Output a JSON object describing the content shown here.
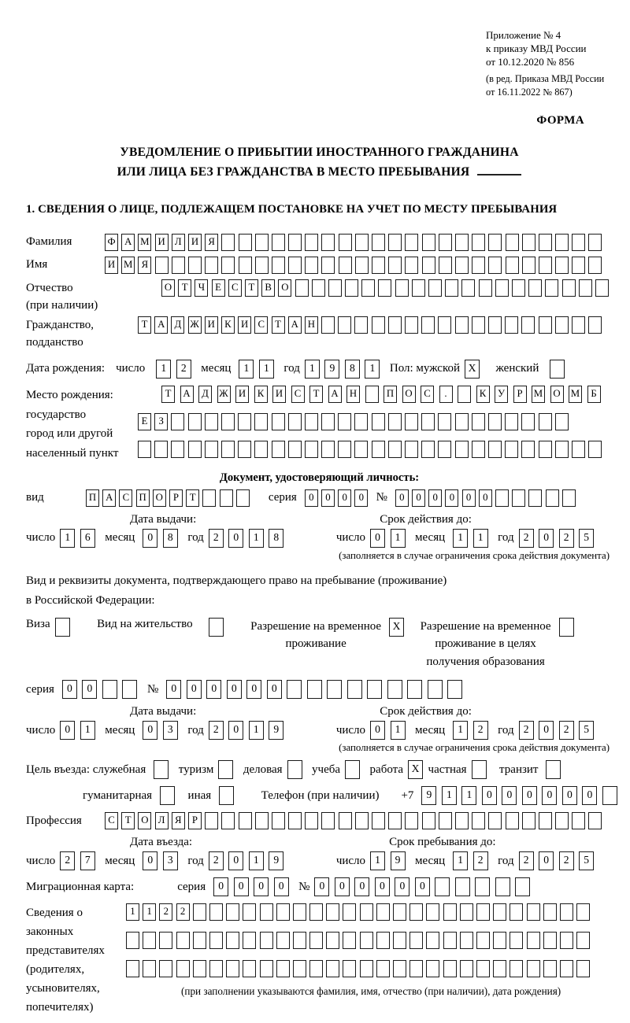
{
  "header": {
    "lines": [
      "Приложение № 4",
      "к приказу МВД России",
      "от 10.12.2020 № 856",
      "(в ред. Приказа МВД России",
      "от 16.11.2022 № 867)"
    ],
    "forma": "ФОРМА"
  },
  "title": {
    "line1": "УВЕДОМЛЕНИЕ О ПРИБЫТИИ ИНОСТРАННОГО ГРАЖДАНИНА",
    "line2": "ИЛИ ЛИЦА БЕЗ ГРАЖДАНСТВА В МЕСТО ПРЕБЫВАНИЯ"
  },
  "section1": {
    "heading": "1. СВЕДЕНИЯ О ЛИЦЕ, ПОДЛЕЖАЩЕМ ПОСТАНОВКЕ НА УЧЕТ ПО МЕСТУ ПРЕБЫВАНИЯ"
  },
  "labels": {
    "family": "Фамилия",
    "name": "Имя",
    "patronymic": "Отчество",
    "patronymic_note": "(при наличии)",
    "citizenship1": "Гражданство,",
    "citizenship2": "подданство",
    "birthdate": "Дата рождения:",
    "day": "число",
    "month": "месяц",
    "year": "год",
    "sex_male": "Пол: мужской",
    "sex_female": "женский",
    "birthplace": "Место рождения:",
    "bp_state": "государство",
    "bp_city1": "город или другой",
    "bp_city2": "населенный пункт",
    "id_doc_header": "Документ, удостоверяющий личность:",
    "vid": "вид",
    "series": "серия",
    "number": "№",
    "issue_date": "Дата выдачи:",
    "valid_until": "Срок действия до:",
    "limit_note": "(заполняется в случае ограничения срока действия документа)",
    "right_doc1": "Вид и реквизиты документа, подтверждающего право на пребывание (проживание)",
    "right_doc2": "в Российской Федерации:",
    "visa": "Виза",
    "residence_permit": "Вид на жительство",
    "temp_res1": "Разрешение на временное",
    "temp_res2": "проживание",
    "temp_res_edu1": "Разрешение на временное",
    "temp_res_edu2": "проживание в целях",
    "temp_res_edu3": "получения образования",
    "purpose": "Цель въезда: служебная",
    "tourism": "туризм",
    "business": "деловая",
    "study": "учеба",
    "work": "работа",
    "private": "частная",
    "transit": "транзит",
    "humanitarian": "гуманитарная",
    "other": "иная",
    "phone_label": "Телефон (при наличии)",
    "plus7": "+7",
    "profession": "Профессия",
    "entry_date": "Дата въезда:",
    "stay_until": "Срок пребывания до:",
    "migcard": "Миграционная карта:",
    "reps": [
      "Сведения о",
      "законных",
      "представителях",
      "(родителях,",
      "усыновителях,",
      "попечителях)"
    ],
    "reps_note": "(при заполнении указываются фамилия, имя, отчество (при наличии), дата рождения)"
  },
  "fields": {
    "surname": {
      "v": "ФАМИЛИЯ",
      "n": 30
    },
    "given_name": {
      "v": "ИМЯ",
      "n": 30
    },
    "patronymic": {
      "v": "ОТЧЕСТВО",
      "n": 27
    },
    "citizenship": {
      "v": "ТАДЖИКИСТАН",
      "n": 28
    },
    "birth_day": {
      "v": "12",
      "n": 2
    },
    "birth_month": {
      "v": "11",
      "n": 2
    },
    "birth_year": {
      "v": "1981",
      "n": 4
    },
    "sex_male": {
      "v": "X",
      "n": 1
    },
    "sex_female": {
      "v": "",
      "n": 1
    },
    "birthplace_line1": {
      "v": "ТАДЖИКИСТАН ПОС. КУРМОМБ",
      "n": 24
    },
    "birthplace_line2": {
      "v": "ЕЗ",
      "n": 26
    },
    "birthplace_line3": {
      "v": "",
      "n": 28
    },
    "id_doc_type": {
      "v": "ПАСПОРТ",
      "n": 10
    },
    "id_doc_series": {
      "v": "0000",
      "n": 4
    },
    "id_doc_number": {
      "v": "000000",
      "n": 11
    },
    "id_issue_day": {
      "v": "16",
      "n": 2
    },
    "id_issue_month": {
      "v": "08",
      "n": 2
    },
    "id_issue_year": {
      "v": "2018",
      "n": 4
    },
    "id_valid_day": {
      "v": "01",
      "n": 2
    },
    "id_valid_month": {
      "v": "11",
      "n": 2
    },
    "id_valid_year": {
      "v": "2025",
      "n": 4
    },
    "cb_visa": {
      "v": "",
      "n": 1
    },
    "cb_residence_permit": {
      "v": "",
      "n": 1
    },
    "cb_temp_residence": {
      "v": "X",
      "n": 1
    },
    "cb_temp_residence_edu": {
      "v": "",
      "n": 1
    },
    "permit_series": {
      "v": "00",
      "n": 4
    },
    "permit_number": {
      "v": "000000",
      "n": 15
    },
    "permit_issue_day": {
      "v": "01",
      "n": 2
    },
    "permit_issue_month": {
      "v": "03",
      "n": 2
    },
    "permit_issue_year": {
      "v": "2019",
      "n": 4
    },
    "permit_valid_day": {
      "v": "01",
      "n": 2
    },
    "permit_valid_month": {
      "v": "12",
      "n": 2
    },
    "permit_valid_year": {
      "v": "2025",
      "n": 4
    },
    "cb_official": {
      "v": "",
      "n": 1
    },
    "cb_tourism": {
      "v": "",
      "n": 1
    },
    "cb_business": {
      "v": "",
      "n": 1
    },
    "cb_study": {
      "v": "",
      "n": 1
    },
    "cb_work": {
      "v": "X",
      "n": 1
    },
    "cb_private": {
      "v": "",
      "n": 1
    },
    "cb_transit": {
      "v": "",
      "n": 1
    },
    "cb_humanitarian": {
      "v": "",
      "n": 1
    },
    "cb_other": {
      "v": "",
      "n": 1
    },
    "phone": {
      "v": "911000000",
      "n": 10
    },
    "profession": {
      "v": "СТОЛЯР",
      "n": 30
    },
    "entry_day": {
      "v": "27",
      "n": 2
    },
    "entry_month": {
      "v": "03",
      "n": 2
    },
    "entry_year": {
      "v": "2019",
      "n": 4
    },
    "stay_day": {
      "v": "19",
      "n": 2
    },
    "stay_month": {
      "v": "12",
      "n": 2
    },
    "stay_year": {
      "v": "2025",
      "n": 4
    },
    "migcard_series": {
      "v": "0000",
      "n": 4
    },
    "migcard_number": {
      "v": "000000",
      "n": 11
    },
    "representatives_line1": {
      "v": "1122",
      "n": 28
    },
    "representatives_line2": {
      "v": "",
      "n": 28
    },
    "representatives_line3": {
      "v": "",
      "n": 28
    }
  }
}
